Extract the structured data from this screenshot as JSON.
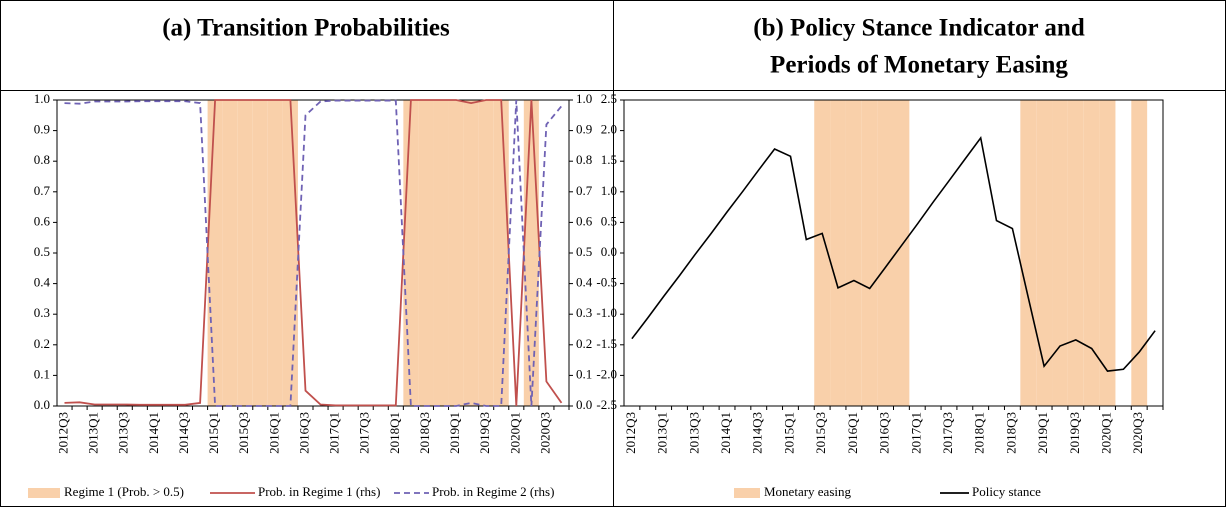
{
  "chart_data": [
    {
      "type": "line",
      "title": [
        "(a) Transition Probabilities"
      ],
      "categories": [
        "2012Q3",
        null,
        "2013Q1",
        null,
        "2013Q3",
        null,
        "2014Q1",
        null,
        "2014Q3",
        null,
        "2015Q1",
        null,
        "2015Q3",
        null,
        "2016Q1",
        null,
        "2016Q3",
        null,
        "2017Q1",
        null,
        "2017Q3",
        null,
        "2018Q1",
        null,
        "2018Q3",
        null,
        "2019Q1",
        null,
        "2019Q3",
        null,
        "2020Q1",
        null,
        "2020Q3",
        null
      ],
      "series": [
        {
          "name": "Regime 1 (Prob. > 0.5)",
          "kind": "band",
          "color": "#f9d0aa",
          "values": [
            0,
            0,
            0,
            0,
            0,
            0,
            0,
            0,
            0,
            0,
            1,
            1,
            1,
            1,
            1,
            1,
            0,
            0,
            0,
            0,
            0,
            0,
            0,
            1,
            1,
            1,
            1,
            1,
            1,
            1,
            0,
            1,
            0,
            0
          ]
        },
        {
          "name": "Prob. in Regime 1 (rhs)",
          "kind": "line",
          "axis": "y2",
          "color": "#c0504d",
          "dash": false,
          "values": [
            0.01,
            0.012,
            0.005,
            0.005,
            0.005,
            0.004,
            0.004,
            0.004,
            0.004,
            0.01,
            1.0,
            1.0,
            1.0,
            1.0,
            1.0,
            1.0,
            0.05,
            0.005,
            0.002,
            0.002,
            0.002,
            0.002,
            0.002,
            1.0,
            1.0,
            1.0,
            1.0,
            0.99,
            1.0,
            1.0,
            0.0,
            1.0,
            0.08,
            0.01
          ]
        },
        {
          "name": "Prob. in Regime 2 (rhs)",
          "kind": "line",
          "axis": "y2",
          "color": "#6f62b4",
          "dash": true,
          "values": [
            0.99,
            0.988,
            0.995,
            0.995,
            0.995,
            0.996,
            0.996,
            0.996,
            0.996,
            0.99,
            0.0,
            0.0,
            0.0,
            0.0,
            0.0,
            0.0,
            0.95,
            0.995,
            0.998,
            0.998,
            0.998,
            0.998,
            0.998,
            0.0,
            0.0,
            0.0,
            0.0,
            0.01,
            0.0,
            0.0,
            1.0,
            0.0,
            0.92,
            0.98
          ]
        }
      ],
      "ylim": [
        0,
        1
      ],
      "yticks": [
        {
          "value": 0,
          "label": "0.0"
        },
        0.1,
        0.2,
        0.3,
        0.4,
        0.5,
        0.6,
        0.7,
        0.8,
        0.9,
        {
          "value": 1,
          "label": "1.0"
        }
      ],
      "y2lim": [
        0,
        1
      ],
      "y2ticks": [
        {
          "value": 0,
          "label": "0.0"
        },
        0.1,
        0.2,
        0.3,
        0.4,
        0.5,
        0.6,
        0.7,
        0.8,
        0.9,
        {
          "value": 1,
          "label": "1.0"
        }
      ]
    },
    {
      "type": "line",
      "title": [
        "(b) Policy Stance Indicator and",
        "Periods of Monetary Easing"
      ],
      "categories": [
        "2012Q3",
        null,
        "2013Q1",
        null,
        "2013Q3",
        null,
        "2014Q1",
        null,
        "2014Q3",
        null,
        "2015Q1",
        null,
        "2015Q3",
        null,
        "2016Q1",
        null,
        "2016Q3",
        null,
        "2017Q1",
        null,
        "2017Q3",
        null,
        "2018Q1",
        null,
        "2018Q3",
        null,
        "2019Q1",
        null,
        "2019Q3",
        null,
        "2020Q1",
        null,
        "2020Q3",
        null
      ],
      "series": [
        {
          "name": "Monetary easing",
          "kind": "band",
          "color": "#f9d0aa",
          "values": [
            0,
            0,
            0,
            0,
            0,
            0,
            0,
            0,
            0,
            0,
            0,
            0,
            1,
            1,
            1,
            1,
            1,
            1,
            0,
            0,
            0,
            0,
            0,
            0,
            0,
            1,
            1,
            1,
            1,
            1,
            1,
            0,
            1,
            0
          ]
        },
        {
          "name": "Policy stance",
          "kind": "line",
          "color": "#000000",
          "dash": false,
          "values": [
            -1.4,
            -1.06,
            -0.71,
            -0.37,
            -0.02,
            0.32,
            0.67,
            1.01,
            1.36,
            1.7,
            1.58,
            0.22,
            0.32,
            -0.57,
            -0.45,
            -0.58,
            -0.23,
            0.12,
            0.47,
            0.83,
            1.18,
            1.53,
            1.88,
            0.53,
            0.4,
            -0.73,
            -1.85,
            -1.52,
            -1.42,
            -1.56,
            -1.93,
            -1.9,
            -1.62,
            -1.27
          ]
        }
      ],
      "ylim": [
        -2.5,
        2.5
      ],
      "yticks": [
        -2.5,
        {
          "value": -2,
          "label": "-2.0"
        },
        -1.5,
        {
          "value": -1,
          "label": "-1.0"
        },
        -0.5,
        {
          "value": 0,
          "label": "0.0"
        },
        0.5,
        {
          "value": 1,
          "label": "1.0"
        },
        1.5,
        {
          "value": 2,
          "label": "2.0"
        },
        2.5
      ]
    }
  ]
}
